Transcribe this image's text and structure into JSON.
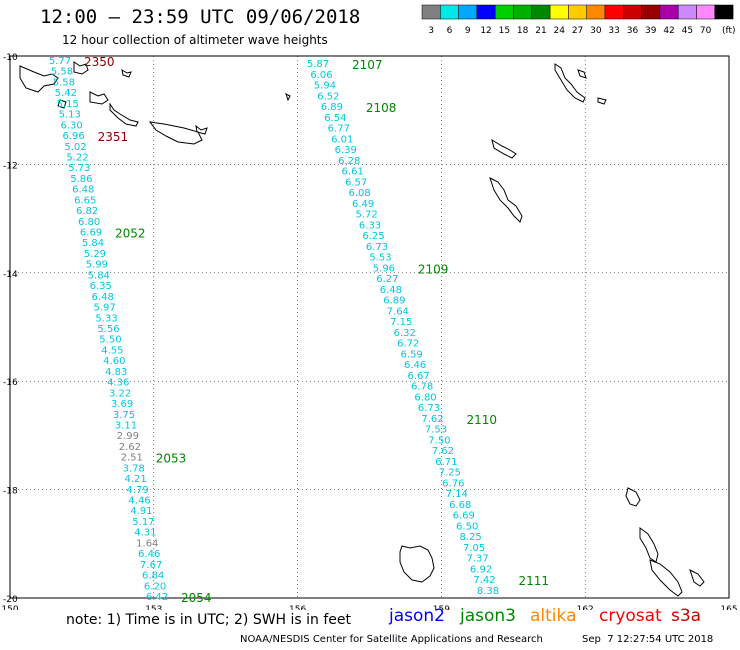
{
  "header": {
    "title": "12:00 – 23:59 UTC 09/06/2018",
    "subtitle": "12 hour collection of altimeter wave heights"
  },
  "legend": {
    "unit": "(ft)",
    "items": [
      {
        "label": "3",
        "color": "#808080"
      },
      {
        "label": "6",
        "color": "#00e8e8"
      },
      {
        "label": "9",
        "color": "#00a8ff"
      },
      {
        "label": "12",
        "color": "#0000ff"
      },
      {
        "label": "15",
        "color": "#00d000"
      },
      {
        "label": "18",
        "color": "#00b000"
      },
      {
        "label": "21",
        "color": "#008800"
      },
      {
        "label": "24",
        "color": "#ffff00"
      },
      {
        "label": "27",
        "color": "#ffcc00"
      },
      {
        "label": "30",
        "color": "#ff8800"
      },
      {
        "label": "33",
        "color": "#ff0000"
      },
      {
        "label": "36",
        "color": "#cc0000"
      },
      {
        "label": "39",
        "color": "#990000"
      },
      {
        "label": "42",
        "color": "#aa00aa"
      },
      {
        "label": "45",
        "color": "#cc88ff"
      },
      {
        "label": "70",
        "color": "#ff88ff"
      },
      {
        "label": "",
        "color": "#000000"
      }
    ]
  },
  "axes": {
    "lat_labels": [
      "-10",
      "-12",
      "-14",
      "-16",
      "-18",
      "-20"
    ],
    "lon_labels": [
      "150",
      "153",
      "156",
      "159",
      "162",
      "165"
    ]
  },
  "tracks": [
    {
      "id": "left",
      "color": "#00c8e0",
      "labels": [
        {
          "text": "2350",
          "color": "#8b0000",
          "after": 0
        },
        {
          "text": "2351",
          "color": "#8b0000",
          "after": 7
        },
        {
          "text": "2052",
          "color": "#008800",
          "after": 16
        },
        {
          "text": "2053",
          "color": "#008800",
          "after": 37
        },
        {
          "text": "2054",
          "color": "#008800",
          "after": 55
        }
      ],
      "values": [
        "5.77",
        "5.58",
        "5.58",
        "5.42",
        "5.15",
        "5.13",
        "6.30",
        "6.96",
        "5.02",
        "5.22",
        "5.73",
        "5.86",
        "6.48",
        "6.65",
        "6.82",
        "6.80",
        "6.69",
        "5.84",
        "5.29",
        "5.99",
        "5.84",
        "6.35",
        "6.48",
        "5.97",
        "5.33",
        "5.56",
        "5.50",
        "4.55",
        "4.60",
        "4.83",
        "4.36",
        "3.22",
        "3.69",
        "3.75",
        "3.11",
        "2.99",
        "2.62",
        "2.51",
        "3.78",
        "4.21",
        "4.79",
        "4.46",
        "4.91",
        "5.17",
        "4.31",
        "1.64",
        "6.46",
        "7.67",
        "6.84",
        "6.20",
        "6.42"
      ]
    },
    {
      "id": "right",
      "color": "#00c8e0",
      "labels": [
        {
          "text": "2107",
          "color": "#008800"
        },
        {
          "text": "2108",
          "color": "#008800"
        },
        {
          "text": "2109",
          "color": "#008800"
        },
        {
          "text": "2110",
          "color": "#008800"
        },
        {
          "text": "2111",
          "color": "#008800"
        }
      ],
      "values": [
        "5.87",
        "6.06",
        "5.94",
        "6.52",
        "6.89",
        "6.54",
        "6.77",
        "6.01",
        "6.39",
        "6.28",
        "6.61",
        "6.57",
        "6.08",
        "6.49",
        "5.72",
        "6.33",
        "6.25",
        "6.73",
        "5.53",
        "5.96",
        "6.27",
        "6.48",
        "6.89",
        "7.64",
        "7.15",
        "6.32",
        "6.72",
        "6.59",
        "6.46",
        "6.67",
        "6.78",
        "6.80",
        "6.73",
        "7.62",
        "7.53",
        "7.50",
        "7.62",
        "6.71",
        "7.25",
        "6.76",
        "7.14",
        "6.68",
        "6.69",
        "6.50",
        "8.25",
        "7.05",
        "7.37",
        "6.92",
        "7.42",
        "8.38"
      ]
    }
  ],
  "footer": {
    "note": "note: 1) Time is in UTC; 2) SWH is in feet",
    "satellites": [
      {
        "name": "jason2",
        "color": "#0000ff"
      },
      {
        "name": "jason3",
        "color": "#008800"
      },
      {
        "name": "altika",
        "color": "#ff8800"
      },
      {
        "name": "cryosat",
        "color": "#ff0000"
      },
      {
        "name": "s3a",
        "color": "#cc0000"
      }
    ],
    "credit": "NOAA/NESDIS Center for Satellite Applications and Research",
    "timestamp": "Sep  7 12:27:54 UTC 2018"
  }
}
